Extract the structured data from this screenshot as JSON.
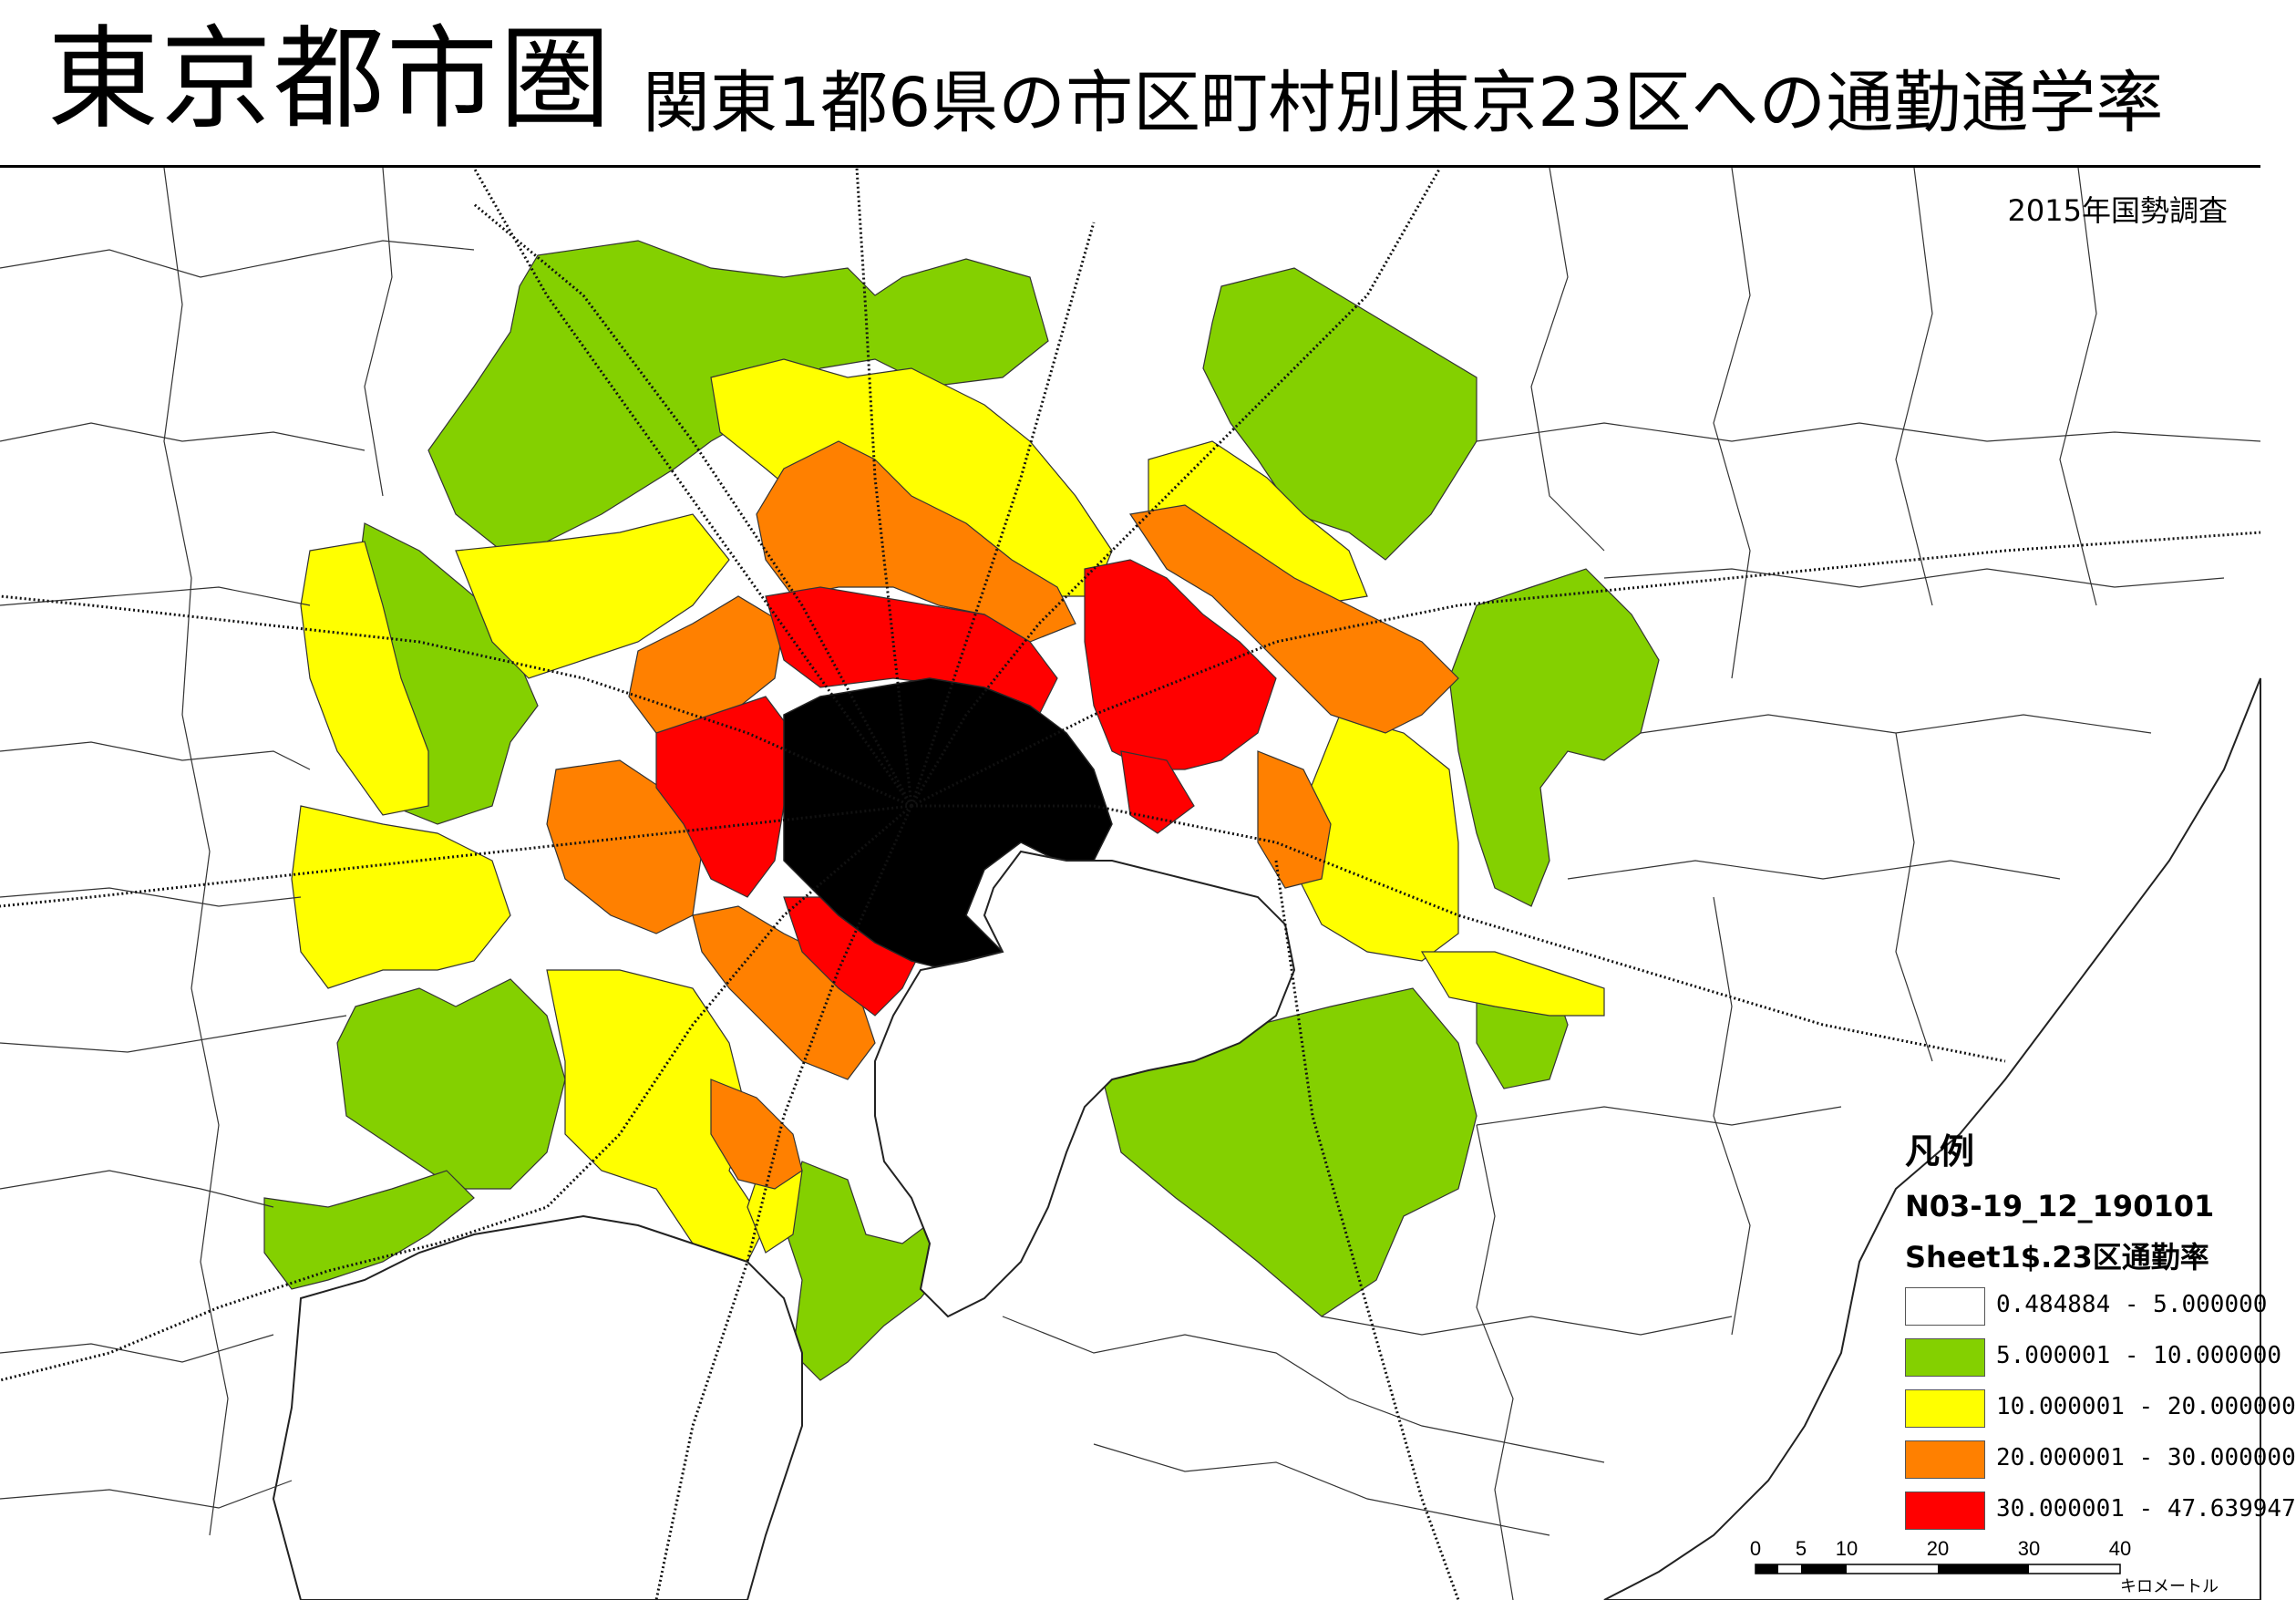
{
  "header": {
    "title_main": "東京都市圏",
    "title_sub": "関東1都6県の市区町村別東京23区への通勤通学率",
    "source": "2015年国勢調査"
  },
  "colors": {
    "black": "#000000",
    "red": "#ff0000",
    "orange": "#ff8000",
    "yellow": "#ffff00",
    "green": "#84d000",
    "white": "#ffffff",
    "water": "#ffffff"
  },
  "legend": {
    "title": "凡例",
    "layer": "N03-19_12_190101",
    "field": "Sheet1$.23区通勤率",
    "classes": [
      {
        "label": "0.484884 - 5.000000",
        "color": "#ffffff"
      },
      {
        "label": "5.000001 - 10.000000",
        "color": "#84d000"
      },
      {
        "label": "10.000001 - 20.000000",
        "color": "#ffff00"
      },
      {
        "label": "20.000001 - 30.000000",
        "color": "#ff8000"
      },
      {
        "label": "30.000001 - 47.639947",
        "color": "#ff0000"
      }
    ]
  },
  "scalebar": {
    "ticks": [
      "0",
      "5",
      "10",
      "20",
      "30",
      "40"
    ],
    "tick_values": [
      0,
      5,
      10,
      20,
      30,
      40
    ],
    "unit": "キロメートル"
  }
}
